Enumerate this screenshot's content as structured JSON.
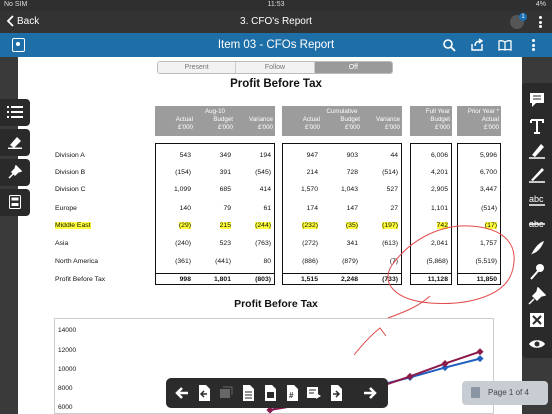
{
  "status_bar": {
    "carrier": "No SIM",
    "time": "11:53",
    "battery": "4%"
  },
  "nav": {
    "back_label": "Back",
    "title": "3. CFO's Report",
    "notification_count": "1"
  },
  "toolbar": {
    "title": "Item 03 - CFOs Report"
  },
  "view_modes": [
    {
      "label": "Present",
      "active": false
    },
    {
      "label": "Follow",
      "active": false
    },
    {
      "label": "Off",
      "active": true
    }
  ],
  "report": {
    "title": "Profit Before Tax",
    "headers": {
      "month": "Aug-10",
      "cumulative": "Cumulative",
      "full_year": "Full Year",
      "prior_year": "Prior Year *",
      "actual": "Actual",
      "budget": "Budget",
      "variance": "Variance",
      "unit": "£'000"
    },
    "rows": [
      {
        "label": "Division A",
        "values": [
          "543",
          "349",
          "194",
          "947",
          "903",
          "44",
          "6,006",
          "5,996"
        ],
        "highlight": false
      },
      {
        "label": "Division B",
        "values": [
          "(154)",
          "391",
          "(545)",
          "214",
          "728",
          "(514)",
          "4,201",
          "6,700"
        ],
        "highlight": false
      },
      {
        "label": "Division C",
        "values": [
          "1,099",
          "685",
          "414",
          "1,570",
          "1,043",
          "527",
          "2,905",
          "3,447"
        ],
        "highlight": false
      },
      {
        "label": "Europe",
        "values": [
          "140",
          "79",
          "61",
          "174",
          "147",
          "27",
          "1,101",
          "(514)"
        ],
        "highlight": false
      },
      {
        "label": "Middle East",
        "values": [
          "(29)",
          "215",
          "(244)",
          "(232)",
          "(35)",
          "(197)",
          "742",
          "(17)"
        ],
        "highlight": true
      },
      {
        "label": "Asia",
        "values": [
          "(240)",
          "523",
          "(763)",
          "(272)",
          "341",
          "(613)",
          "2,041",
          "1,757"
        ],
        "highlight": false
      },
      {
        "label": "North America",
        "values": [
          "(361)",
          "(441)",
          "80",
          "(886)",
          "(879)",
          "(7)",
          "(5,868)",
          "(5,519)"
        ],
        "highlight": false
      },
      {
        "label": "Profit Before Tax",
        "values": [
          "998",
          "1,801",
          "(803)",
          "1,515",
          "2,248",
          "(733)",
          "11,128",
          "11,850"
        ],
        "highlight": false,
        "total": true
      }
    ]
  },
  "chart_data": {
    "type": "line",
    "title": "Profit Before Tax",
    "y_ticks": [
      "14000",
      "12000",
      "10000",
      "8000",
      "6000"
    ],
    "ylim": [
      6000,
      14000
    ],
    "series": [
      {
        "color": "#1f5fbf",
        "values": [
          6000,
          6800,
          7600,
          8400,
          9300,
          10300,
          11200
        ]
      },
      {
        "color": "#8b1a4a",
        "values": [
          6000,
          6600,
          7300,
          8200,
          9400,
          10700,
          11900
        ]
      }
    ]
  },
  "pager": {
    "label": "Page 1 of 4"
  }
}
